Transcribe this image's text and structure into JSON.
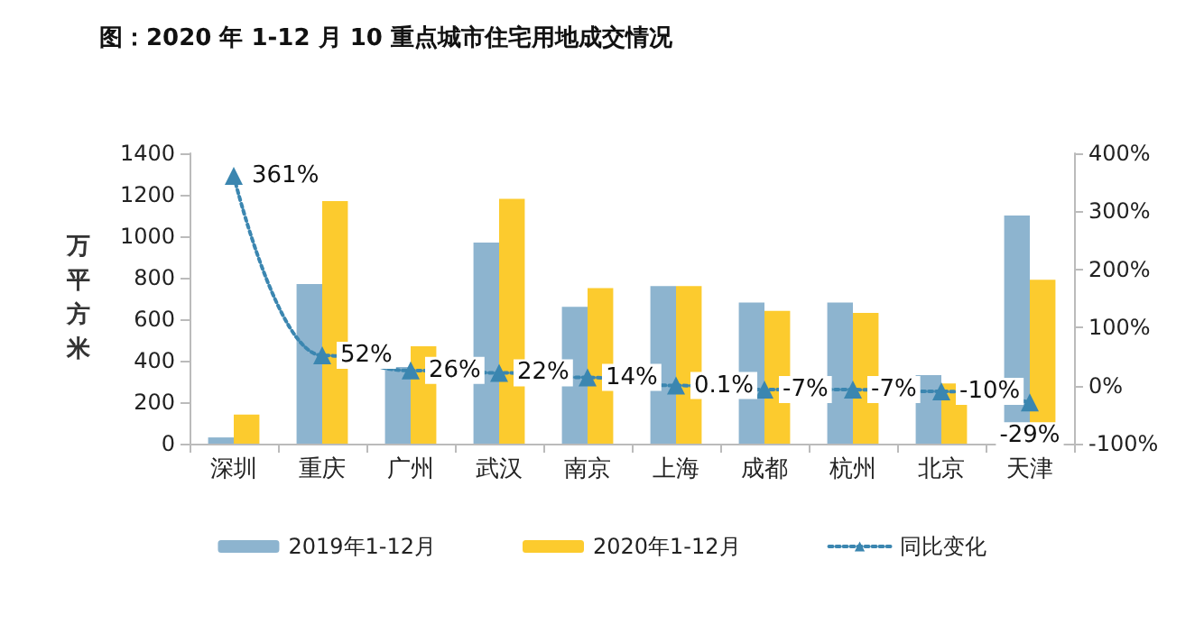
{
  "chart_data": {
    "type": "bar",
    "title": "图：2020 年 1-12 月 10 重点城市住宅用地成交情况",
    "ylabel": "万平方米",
    "categories": [
      "深圳",
      "重庆",
      "广州",
      "武汉",
      "南京",
      "上海",
      "成都",
      "杭州",
      "北京",
      "天津"
    ],
    "series": [
      {
        "name": "2019年1-12月",
        "color": "#8db4cf",
        "values": [
          30,
          770,
          370,
          970,
          660,
          760,
          680,
          680,
          330,
          1100
        ]
      },
      {
        "name": "2020年1-12月",
        "color": "#fccb2e",
        "values": [
          140,
          1170,
          470,
          1180,
          750,
          760,
          640,
          630,
          290,
          790
        ]
      },
      {
        "name": "同比变化",
        "type": "line",
        "axis": "y2",
        "color": "#3b86b0",
        "marker": "triangle",
        "line_style": "dotted",
        "values": [
          361,
          52,
          26,
          22,
          14,
          0.1,
          -7,
          -7,
          -10,
          -29
        ],
        "value_labels": [
          "361%",
          "52%",
          "26%",
          "22%",
          "14%",
          "0.1%",
          "-7%",
          "-7%",
          "-10%",
          "-29%"
        ]
      }
    ],
    "ylim": [
      0,
      1400
    ],
    "yticks": [
      0,
      200,
      400,
      600,
      800,
      1000,
      1200,
      1400
    ],
    "y2lim": [
      -100,
      400
    ],
    "y2ticks": [
      {
        "value": -100,
        "label": "-100%"
      },
      {
        "value": 0,
        "label": "0%"
      },
      {
        "value": 100,
        "label": "100%"
      },
      {
        "value": 200,
        "label": "200%"
      },
      {
        "value": 300,
        "label": "300%"
      },
      {
        "value": 400,
        "label": "400%"
      }
    ],
    "grid": false,
    "legend": "bottom"
  }
}
